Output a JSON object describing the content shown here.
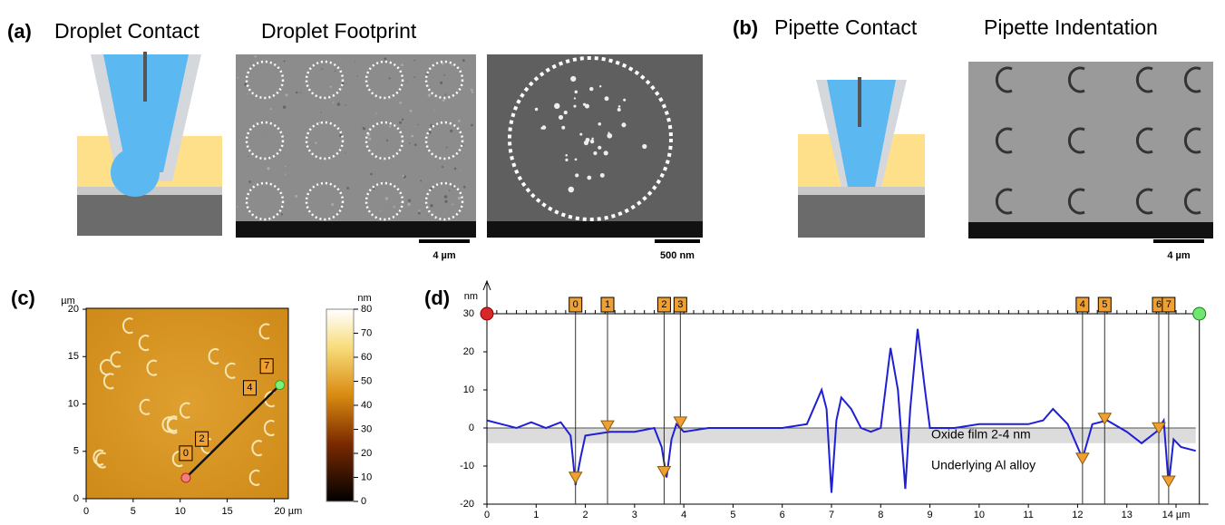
{
  "panel_a": {
    "label": "(a)",
    "titles": [
      "Droplet Contact",
      "Droplet Footprint"
    ],
    "scale_bars": [
      "4 µm",
      "500 nm"
    ]
  },
  "panel_b": {
    "label": "(b)",
    "titles": [
      "Pipette Contact",
      "Pipette Indentation"
    ],
    "scale_bars": [
      "4 µm"
    ]
  },
  "chart_data": [
    {
      "type": "map",
      "label": "(c)",
      "y_label": "µm",
      "xlim": [
        0,
        21.5
      ],
      "ylim": [
        0,
        20.1
      ],
      "xticks": [
        0,
        5,
        10,
        15,
        {
          "value": 20,
          "label": "20 µm"
        }
      ],
      "yticks": [
        0,
        5,
        10,
        15,
        20
      ],
      "colorbar": {
        "label": "nm",
        "lim": [
          0,
          80
        ],
        "ticks": [
          0,
          10,
          20,
          30,
          40,
          50,
          60,
          70,
          80
        ]
      },
      "profile_line": {
        "x": [
          10.6,
          20.6
        ],
        "y": [
          2.2,
          12.0
        ]
      },
      "markers": {
        "labels": [
          "0",
          "2",
          "4",
          "7"
        ],
        "x": [
          10.6,
          12.3,
          17.4,
          19.2
        ],
        "y": [
          4.8,
          6.3,
          11.7,
          14.0
        ]
      }
    },
    {
      "type": "line",
      "label": "(d)",
      "y_label": "nm",
      "color": "#1f1fd6",
      "xlim": [
        0,
        14.4
      ],
      "ylim": [
        -20,
        30
      ],
      "xticks": [
        0,
        1,
        2,
        3,
        4,
        5,
        6,
        7,
        8,
        9,
        10,
        11,
        12,
        13,
        {
          "value": 14,
          "label": "14 µm"
        }
      ],
      "yticks": [
        -20,
        -10,
        0,
        10,
        20,
        30
      ],
      "x": [
        0,
        0.3,
        0.6,
        0.9,
        1.2,
        1.5,
        1.7,
        1.8,
        1.9,
        2.0,
        2.5,
        3.0,
        3.4,
        3.55,
        3.65,
        3.75,
        3.85,
        4.0,
        4.5,
        5.0,
        5.5,
        6.0,
        6.5,
        6.8,
        6.9,
        7.0,
        7.1,
        7.2,
        7.4,
        7.6,
        7.8,
        8.0,
        8.2,
        8.35,
        8.5,
        8.6,
        8.75,
        8.9,
        9.0,
        9.5,
        10,
        10.5,
        11,
        11.3,
        11.5,
        11.8,
        12.1,
        12.3,
        12.6,
        13.0,
        13.3,
        13.6,
        13.75,
        13.85,
        13.95,
        14.1,
        14.4
      ],
      "values": [
        2,
        1,
        0,
        1.5,
        0,
        1.5,
        -2,
        -15,
        -8,
        -2,
        -1,
        -1,
        0,
        -5,
        -13,
        -3,
        1,
        -1,
        0,
        0,
        0,
        0,
        1,
        10,
        5,
        -17,
        2,
        8,
        5,
        0,
        -1,
        0,
        21,
        10,
        -16,
        5,
        26,
        10,
        0,
        0,
        1,
        1,
        1,
        2,
        5,
        1,
        -8,
        1,
        2,
        -1,
        -4,
        -1,
        2,
        -15,
        -3,
        -5,
        -6
      ],
      "band": [
        -4,
        0
      ],
      "annotations": [
        "Oxide film 2-4 nm",
        "Underlying Al alloy"
      ],
      "markers": {
        "labels": [
          "0",
          "1",
          "2",
          "3",
          "4",
          "5",
          "6",
          "7"
        ],
        "x": [
          1.8,
          2.45,
          3.6,
          3.93,
          12.1,
          12.55,
          13.65,
          13.85
        ],
        "values": [
          -14,
          -0.5,
          -12.5,
          0.5,
          -9,
          1.5,
          -1,
          -15
        ]
      }
    }
  ]
}
